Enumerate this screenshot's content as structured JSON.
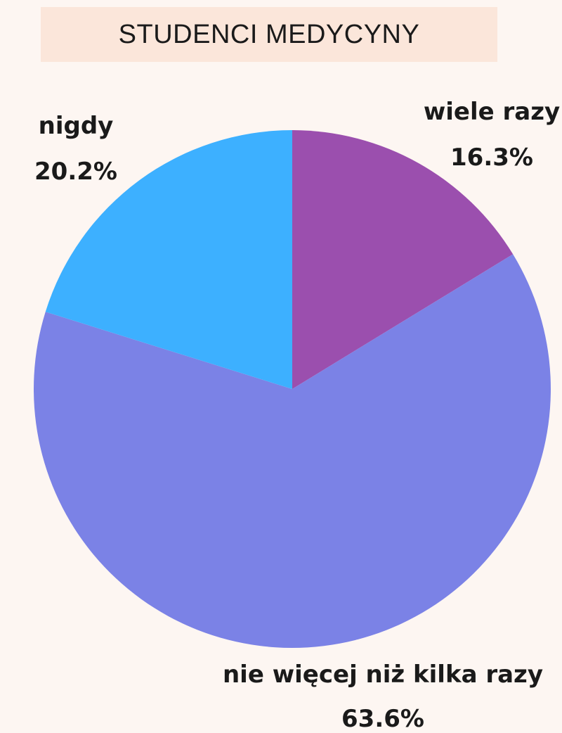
{
  "title": "STUDENCI MEDYCYNY",
  "chart_data": {
    "type": "pie",
    "title": "STUDENCI MEDYCYNY",
    "slices": [
      {
        "label": "wiele razy",
        "value": 16.3,
        "display": "16.3%",
        "color": "#9b4fae"
      },
      {
        "label": "nie więcej niż kilka razy",
        "value": 63.6,
        "display": "63.6%",
        "color": "#7b82e6"
      },
      {
        "label": "nigdy",
        "value": 20.2,
        "display": "20.2%",
        "color": "#3db0ff"
      }
    ],
    "start_angle": "12 o'clock",
    "direction": "clockwise"
  },
  "colors": {
    "background": "#fdf6f2",
    "title_box": "#fbe6da"
  }
}
